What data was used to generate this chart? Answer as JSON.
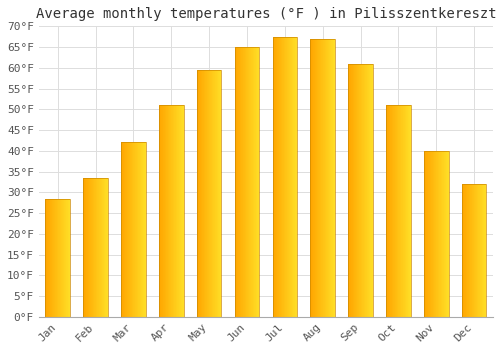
{
  "title": "Average monthly temperatures (°F ) in Pilisszentkereszt",
  "months": [
    "Jan",
    "Feb",
    "Mar",
    "Apr",
    "May",
    "Jun",
    "Jul",
    "Aug",
    "Sep",
    "Oct",
    "Nov",
    "Dec"
  ],
  "values": [
    28.5,
    33.5,
    42.0,
    51.0,
    59.5,
    65.0,
    67.5,
    67.0,
    61.0,
    51.0,
    40.0,
    32.0
  ],
  "bar_color_left": "#FFA500",
  "bar_color_right": "#FFD040",
  "background_color": "#FFFFFF",
  "grid_color": "#DDDDDD",
  "ylim": [
    0,
    70
  ],
  "ytick_step": 5,
  "title_fontsize": 10,
  "tick_fontsize": 8,
  "font_family": "monospace"
}
